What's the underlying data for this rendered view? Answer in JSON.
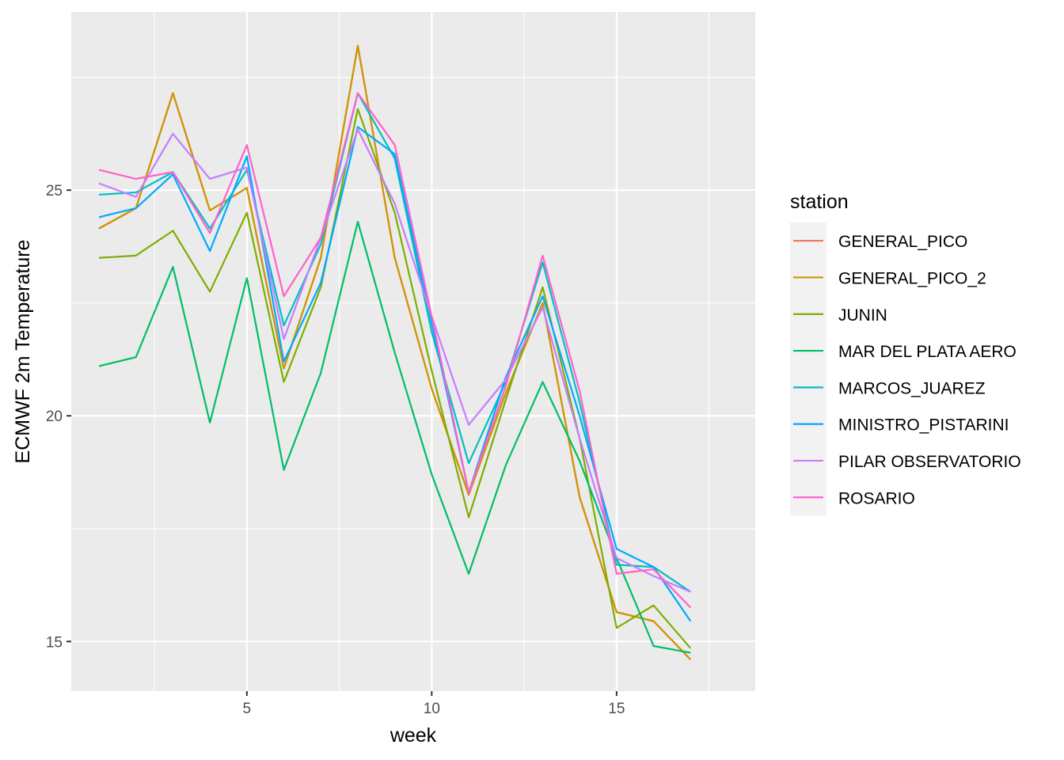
{
  "chart_data": {
    "type": "line",
    "xlabel": "week",
    "ylabel": "ECMWF 2m Temperature",
    "xlim": [
      0.25,
      18.75
    ],
    "ylim": [
      13.9,
      28.95
    ],
    "x_ticks": [
      5,
      10,
      15
    ],
    "x_tick_labels": [
      "5",
      "10",
      "15"
    ],
    "y_ticks": [
      15,
      20,
      25
    ],
    "y_tick_labels": [
      "15",
      "20",
      "25"
    ],
    "grid": true,
    "legend": {
      "title": "station",
      "position": "right"
    },
    "x": [
      1,
      2,
      3,
      4,
      5,
      6,
      7,
      8,
      9,
      10,
      11,
      12,
      13,
      14,
      15,
      16,
      17
    ],
    "series": [
      {
        "name": "GENERAL_PICO",
        "color": "#F8766D",
        "values": [
          24.15,
          24.6,
          27.15,
          24.55,
          25.05,
          21.05,
          23.5,
          28.2,
          23.5,
          20.6,
          18.25,
          20.5,
          22.5,
          18.2,
          15.65,
          15.45,
          14.6
        ]
      },
      {
        "name": "GENERAL_PICO_2",
        "color": "#CD9600",
        "values": [
          24.15,
          24.6,
          27.15,
          24.55,
          25.05,
          21.05,
          23.5,
          28.2,
          23.5,
          20.6,
          18.25,
          20.5,
          22.5,
          18.2,
          15.65,
          15.45,
          14.6
        ]
      },
      {
        "name": "JUNIN",
        "color": "#7CAE00",
        "values": [
          23.5,
          23.55,
          24.1,
          22.75,
          24.5,
          20.75,
          22.85,
          26.8,
          24.5,
          21.0,
          17.75,
          20.35,
          22.85,
          19.5,
          15.3,
          15.8,
          14.85
        ]
      },
      {
        "name": "MAR DEL PLATA AERO",
        "color": "#00BE67",
        "values": [
          21.1,
          21.3,
          23.3,
          19.85,
          23.05,
          18.8,
          20.95,
          24.3,
          21.4,
          18.7,
          16.5,
          18.9,
          20.75,
          19.0,
          16.85,
          14.9,
          14.75
        ]
      },
      {
        "name": "MARCOS_JUAREZ",
        "color": "#00BFC4",
        "values": [
          24.9,
          24.95,
          25.4,
          24.15,
          25.45,
          22.0,
          23.8,
          27.15,
          25.7,
          21.85,
          18.95,
          20.75,
          23.4,
          20.3,
          16.7,
          16.65,
          16.1
        ]
      },
      {
        "name": "MINISTRO_PISTARINI",
        "color": "#00A9FF",
        "values": [
          24.4,
          24.6,
          25.35,
          23.65,
          25.75,
          21.2,
          22.95,
          26.4,
          25.8,
          22.05,
          18.3,
          20.85,
          22.65,
          20.0,
          17.05,
          16.65,
          15.45
        ]
      },
      {
        "name": "PILAR OBSERVATORIO",
        "color": "#C77CFF",
        "values": [
          25.15,
          24.85,
          26.25,
          25.25,
          25.5,
          21.7,
          23.95,
          26.35,
          24.7,
          22.2,
          19.8,
          20.8,
          22.4,
          19.5,
          16.85,
          16.45,
          16.1
        ]
      },
      {
        "name": "ROSARIO",
        "color": "#FF61CC",
        "values": [
          25.45,
          25.25,
          25.4,
          24.05,
          26.0,
          22.65,
          23.95,
          27.15,
          26.0,
          22.2,
          18.3,
          20.65,
          23.55,
          20.55,
          16.5,
          16.6,
          15.75
        ]
      }
    ]
  },
  "colors": {
    "panel_background": "#EBEBEB",
    "grid_major": "#FFFFFF",
    "tick_text": "#4D4D4D",
    "legend_key_background": "#F2F2F2"
  }
}
